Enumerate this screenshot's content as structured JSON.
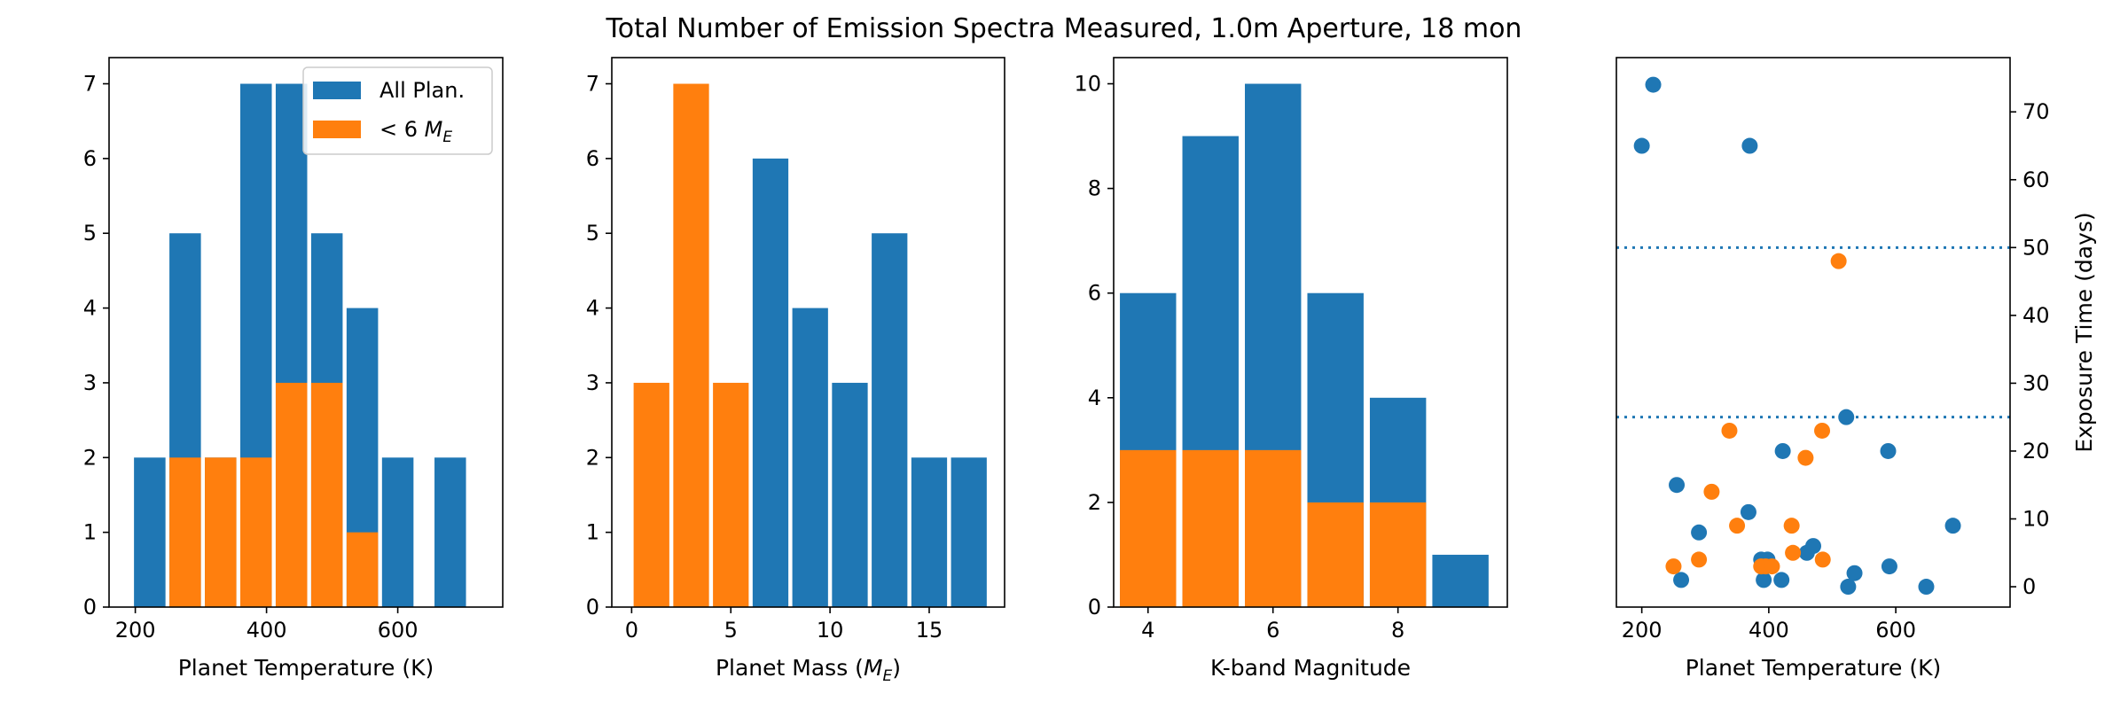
{
  "figure": {
    "title": "Total Number of Emission Spectra Measured, 1.0m Aperture, 18 mon"
  },
  "colors": {
    "all": "#1f77b4",
    "small": "#ff7f0e"
  },
  "chart_data": [
    {
      "type": "bar",
      "xlabel": "Planet Temperature (K)",
      "ylabel": "",
      "xlim": [
        160,
        760
      ],
      "ylim": [
        0,
        7.35
      ],
      "xticks": [
        200,
        400,
        600
      ],
      "yticks": [
        0,
        1,
        2,
        3,
        4,
        5,
        6,
        7
      ],
      "bar_width": 48,
      "legend": {
        "position": "top-right",
        "entries": [
          "All Plan.",
          "< 6 M_E"
        ]
      },
      "series": [
        {
          "name": "All Plan.",
          "x": [
            222,
            276,
            330,
            384,
            438,
            492,
            546,
            600,
            680
          ],
          "values": [
            2,
            5,
            2,
            7,
            7,
            5,
            4,
            2,
            2
          ]
        },
        {
          "name": "< 6 M_E",
          "x": [
            276,
            330,
            384,
            438,
            492,
            546
          ],
          "values": [
            2,
            2,
            2,
            3,
            3,
            1
          ]
        }
      ]
    },
    {
      "type": "bar",
      "xlabel": "Planet Mass (M_E)",
      "ylabel": "",
      "xlim": [
        -1,
        18.8
      ],
      "ylim": [
        0,
        7.35
      ],
      "xticks": [
        0,
        5,
        10,
        15
      ],
      "yticks": [
        0,
        1,
        2,
        3,
        4,
        5,
        6,
        7
      ],
      "bar_width": 1.8,
      "series": [
        {
          "name": "All Plan.",
          "x": [
            7,
            9,
            11,
            13,
            15,
            17
          ],
          "values": [
            6,
            4,
            3,
            5,
            2,
            2
          ]
        },
        {
          "name": "< 6 M_E",
          "x": [
            1,
            3,
            5
          ],
          "values": [
            3,
            7,
            3
          ]
        }
      ]
    },
    {
      "type": "bar",
      "xlabel": "K-band Magnitude",
      "ylabel": "",
      "xlim": [
        3.45,
        9.75
      ],
      "ylim": [
        0,
        10.5
      ],
      "xticks": [
        4,
        6,
        8
      ],
      "yticks": [
        0,
        2,
        4,
        6,
        8,
        10
      ],
      "bar_width": 0.9,
      "series": [
        {
          "name": "All Plan.",
          "x": [
            4,
            5,
            6,
            7,
            8,
            9
          ],
          "values": [
            6,
            9,
            10,
            6,
            4,
            1
          ]
        },
        {
          "name": "< 6 M_E",
          "x": [
            4,
            5,
            6,
            7,
            8
          ],
          "values": [
            3,
            3,
            3,
            2,
            2
          ]
        }
      ]
    },
    {
      "type": "scatter",
      "xlabel": "Planet Temperature (K)",
      "ylabel": "Exposure Time (days)",
      "xlim": [
        160,
        780
      ],
      "ylim": [
        -3,
        78
      ],
      "xticks": [
        200,
        400,
        600
      ],
      "yticks": [
        0,
        10,
        20,
        30,
        40,
        50,
        60,
        70
      ],
      "hlines": [
        50,
        25
      ],
      "series": [
        {
          "name": "All Plan.",
          "points": [
            [
              200,
              65
            ],
            [
              218,
              74
            ],
            [
              370,
              65
            ],
            [
              255,
              15
            ],
            [
              262,
              1
            ],
            [
              290,
              8
            ],
            [
              368,
              11
            ],
            [
              388,
              4
            ],
            [
              392,
              1
            ],
            [
              398,
              4
            ],
            [
              420,
              1
            ],
            [
              422,
              20
            ],
            [
              460,
              5
            ],
            [
              470,
              6
            ],
            [
              522,
              25
            ],
            [
              525,
              0
            ],
            [
              535,
              2
            ],
            [
              588,
              20
            ],
            [
              590,
              3
            ],
            [
              648,
              0
            ],
            [
              690,
              9
            ]
          ]
        },
        {
          "name": "< 6 M_E",
          "points": [
            [
              250,
              3
            ],
            [
              290,
              4
            ],
            [
              310,
              14
            ],
            [
              338,
              23
            ],
            [
              350,
              9
            ],
            [
              388,
              3
            ],
            [
              395,
              3
            ],
            [
              405,
              3
            ],
            [
              436,
              9
            ],
            [
              438,
              5
            ],
            [
              458,
              19
            ],
            [
              484,
              23
            ],
            [
              485,
              4
            ],
            [
              510,
              48
            ]
          ]
        }
      ]
    }
  ]
}
